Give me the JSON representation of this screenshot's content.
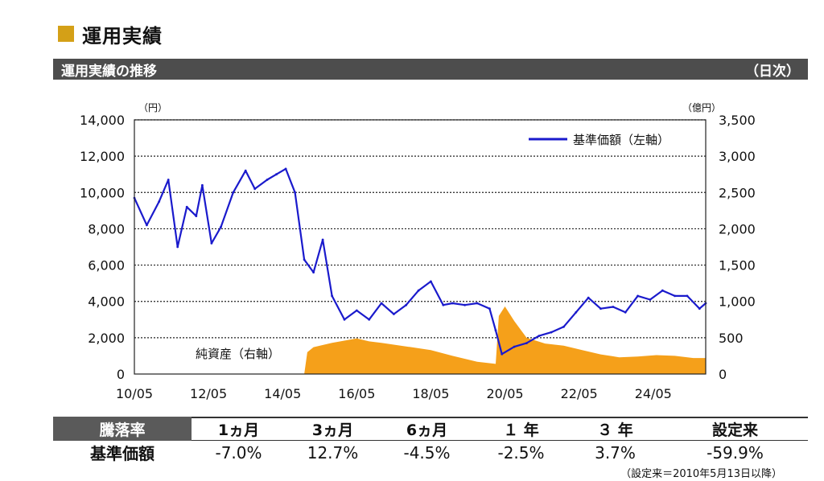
{
  "header": {
    "title": "運用実績",
    "accent_color": "#d4a017"
  },
  "subheader": {
    "title": "運用実績の推移",
    "frequency": "（日次）"
  },
  "chart_data": {
    "type": "line+area",
    "left_axis": {
      "unit_label": "（円）",
      "range": [
        0,
        14000
      ],
      "ticks": [
        "14,000",
        "12,000",
        "10,000",
        "8,000",
        "6,000",
        "4,000",
        "2,000",
        "0"
      ],
      "tick_values": [
        14000,
        12000,
        10000,
        8000,
        6000,
        4000,
        2000,
        0
      ]
    },
    "right_axis": {
      "unit_label": "（億円）",
      "range": [
        0,
        3500
      ],
      "ticks": [
        "3,500",
        "3,000",
        "2,500",
        "2,000",
        "1,500",
        "1,000",
        "500",
        "0"
      ],
      "tick_values": [
        3500,
        3000,
        2500,
        2000,
        1500,
        1000,
        500,
        0
      ]
    },
    "x_axis": {
      "range": [
        "2010-05",
        "2025-10"
      ],
      "ticks": [
        "10/05",
        "12/05",
        "14/05",
        "16/05",
        "18/05",
        "20/05",
        "22/05",
        "24/05"
      ]
    },
    "grid": "horizontal-dotted",
    "legend": {
      "placement": "top-right",
      "entries": [
        "基準価額（左軸）"
      ]
    },
    "annotations": [
      "純資産（右軸）"
    ],
    "series": [
      {
        "name": "基準価額（左軸）",
        "axis": "left",
        "style": "line",
        "color": "#1a1acc",
        "x": [
          "2010-05",
          "2010-09",
          "2011-01",
          "2011-04",
          "2011-07",
          "2011-10",
          "2012-01",
          "2012-03",
          "2012-06",
          "2012-09",
          "2013-01",
          "2013-05",
          "2013-08",
          "2013-12",
          "2014-03",
          "2014-06",
          "2014-09",
          "2014-12",
          "2015-03",
          "2015-06",
          "2015-09",
          "2016-01",
          "2016-05",
          "2016-09",
          "2017-01",
          "2017-05",
          "2017-09",
          "2018-01",
          "2018-05",
          "2018-09",
          "2018-12",
          "2019-04",
          "2019-08",
          "2019-12",
          "2020-02",
          "2020-04",
          "2020-08",
          "2020-12",
          "2021-04",
          "2021-08",
          "2021-12",
          "2022-04",
          "2022-08",
          "2022-12",
          "2023-04",
          "2023-08",
          "2023-12",
          "2024-04",
          "2024-08",
          "2024-12",
          "2025-04",
          "2025-08",
          "2025-10"
        ],
        "values": [
          9700,
          8200,
          9500,
          10700,
          7000,
          9200,
          8700,
          10400,
          7200,
          8100,
          10000,
          11200,
          10200,
          10700,
          11000,
          11300,
          10000,
          6300,
          5600,
          7400,
          4300,
          3000,
          3500,
          3000,
          3900,
          3300,
          3800,
          4600,
          5100,
          3800,
          3900,
          3800,
          3900,
          3600,
          2400,
          1100,
          1500,
          1700,
          2100,
          2300,
          2600,
          3400,
          4200,
          3600,
          3700,
          3400,
          4300,
          4100,
          4600,
          4300,
          4300,
          3600,
          3900
        ]
      },
      {
        "name": "純資産（右軸）",
        "axis": "right",
        "style": "area",
        "color": "#f5a01a",
        "x": [
          "2010-05",
          "2014-12",
          "2015-01",
          "2015-03",
          "2015-09",
          "2016-05",
          "2016-09",
          "2017-01",
          "2017-09",
          "2018-05",
          "2018-12",
          "2019-08",
          "2020-02",
          "2020-03",
          "2020-05",
          "2020-08",
          "2020-12",
          "2021-06",
          "2021-12",
          "2022-06",
          "2022-12",
          "2023-06",
          "2023-12",
          "2024-06",
          "2024-12",
          "2025-06",
          "2025-10"
        ],
        "values": [
          0,
          0,
          300,
          370,
          430,
          490,
          450,
          430,
          380,
          330,
          250,
          170,
          140,
          800,
          930,
          730,
          500,
          420,
          390,
          330,
          270,
          230,
          240,
          260,
          250,
          220,
          220
        ]
      }
    ]
  },
  "performance": {
    "header_label": "騰落率",
    "periods": [
      "1ヵ月",
      "3ヵ月",
      "6ヵ月",
      "１ 年",
      "３ 年",
      "設定来"
    ],
    "row_label": "基準価額",
    "values": [
      "-7.0%",
      "12.7%",
      "-4.5%",
      "-2.5%",
      "3.7%",
      "-59.9%"
    ]
  },
  "footnote": "（設定来＝2010年5月13日以降）"
}
